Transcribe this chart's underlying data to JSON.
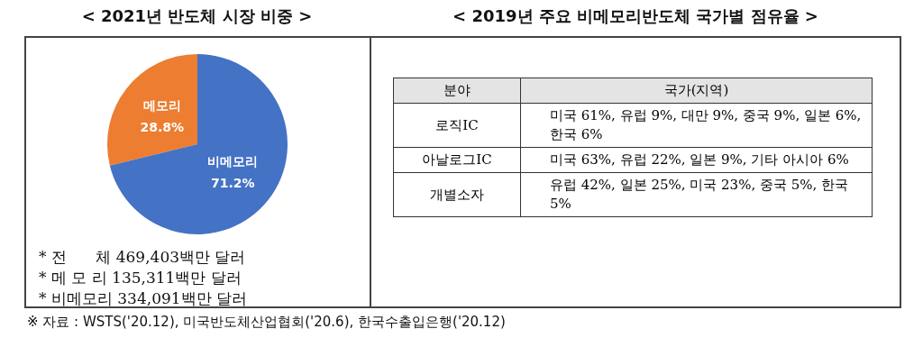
{
  "chart_data": [
    {
      "type": "pie",
      "title": "< 2021년 반도체 시장 비중 >",
      "categories": [
        "메모리",
        "비메모리"
      ],
      "values": [
        28.8,
        71.2
      ],
      "colors": [
        "#ed7d31",
        "#4472c4"
      ],
      "value_labels": [
        "28.8%",
        "71.2%"
      ],
      "legend": false,
      "annotations": [
        "* 전      체 469,403백만 달러",
        "* 메 모 리 135,311백만 달러",
        "* 비메모리 334,091백만 달러"
      ]
    },
    {
      "type": "other",
      "title": "< 2019년 주요 비메모리반도체 국가별 점유율 >",
      "annotations": [
        "분야",
        "국가(지역)",
        "로직IC",
        "미국 61%, 유럽 9%, 대만 9%, 중국 9%, 일본 6%, 한국 6%",
        "아날로그IC",
        "미국 63%, 유럽 22%, 일본 9%, 기타 아시아 6%",
        "개별소자",
        "유럽 42%, 일본 25%, 미국 23%, 중국 5%, 한국 5%",
        "※ 자료 : WSTS('20.12), 미국반도체산업협회('20.6), 한국수출입은행('20.12)"
      ]
    }
  ]
}
